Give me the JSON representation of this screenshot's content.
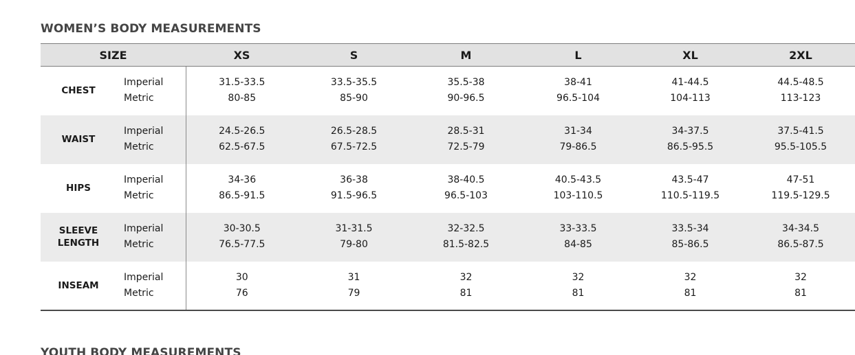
{
  "women": {
    "title": "WOMEN’S BODY MEASUREMENTS",
    "size_header": "SIZE",
    "sizes": [
      "XS",
      "S",
      "M",
      "L",
      "XL",
      "2XL"
    ],
    "units": [
      "Imperial",
      "Metric"
    ],
    "rows": [
      {
        "label": "CHEST",
        "imperial": [
          "31.5-33.5",
          "33.5-35.5",
          "35.5-38",
          "38-41",
          "41-44.5",
          "44.5-48.5"
        ],
        "metric": [
          "80-85",
          "85-90",
          "90-96.5",
          "96.5-104",
          "104-113",
          "113-123"
        ]
      },
      {
        "label": "WAIST",
        "imperial": [
          "24.5-26.5",
          "26.5-28.5",
          "28.5-31",
          "31-34",
          "34-37.5",
          "37.5-41.5"
        ],
        "metric": [
          "62.5-67.5",
          "67.5-72.5",
          "72.5-79",
          "79-86.5",
          "86.5-95.5",
          "95.5-105.5"
        ]
      },
      {
        "label": "HIPS",
        "imperial": [
          "34-36",
          "36-38",
          "38-40.5",
          "40.5-43.5",
          "43.5-47",
          "47-51"
        ],
        "metric": [
          "86.5-91.5",
          "91.5-96.5",
          "96.5-103",
          "103-110.5",
          "110.5-119.5",
          "119.5-129.5"
        ]
      },
      {
        "label_lines": [
          "SLEEVE",
          "LENGTH"
        ],
        "imperial": [
          "30-30.5",
          "31-31.5",
          "32-32.5",
          "33-33.5",
          "33.5-34",
          "34-34.5"
        ],
        "metric": [
          "76.5-77.5",
          "79-80",
          "81.5-82.5",
          "84-85",
          "85-86.5",
          "86.5-87.5"
        ]
      },
      {
        "label": "INSEAM",
        "imperial": [
          "30",
          "31",
          "32",
          "32",
          "32",
          "32"
        ],
        "metric": [
          "76",
          "79",
          "81",
          "81",
          "81",
          "81"
        ]
      }
    ]
  },
  "youth": {
    "title": "YOUTH BODY MEASUREMENTS"
  }
}
